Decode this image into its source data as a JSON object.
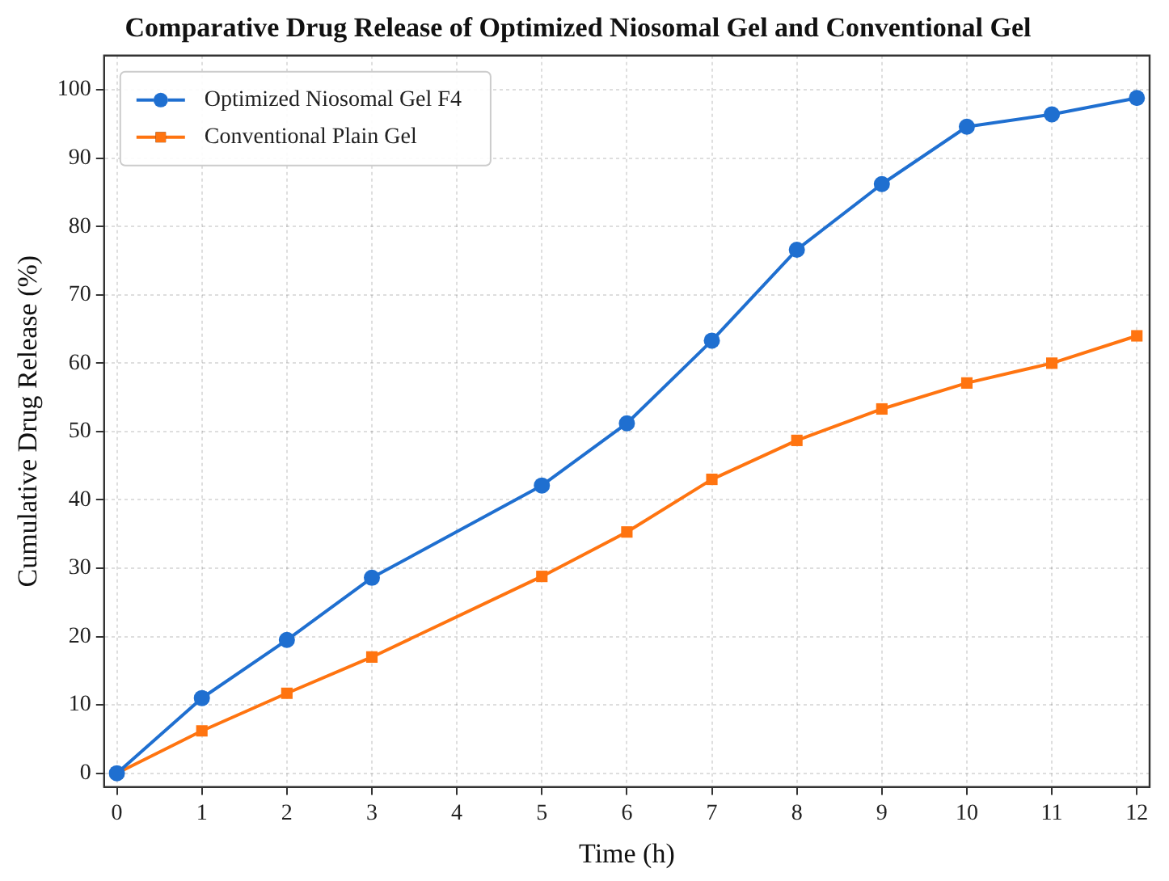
{
  "chart_data": {
    "type": "line",
    "title": "Comparative Drug Release of Optimized Niosomal Gel and Conventional Gel",
    "xlabel": "Time (h)",
    "ylabel": "Cumulative Drug Release (%)",
    "x": [
      0,
      1,
      2,
      3,
      5,
      6,
      7,
      8,
      9,
      10,
      11,
      12
    ],
    "series": [
      {
        "name": "Optimized Niosomal Gel F4",
        "color": "#1f6fd0",
        "marker": "circle",
        "values": [
          0,
          11,
          19.5,
          28.6,
          42.1,
          51.2,
          63.3,
          76.6,
          86.2,
          94.6,
          96.4,
          98.8
        ]
      },
      {
        "name": "Conventional Plain Gel",
        "color": "#ff7410",
        "marker": "square",
        "values": [
          0,
          6.2,
          11.7,
          17,
          28.8,
          35.3,
          43,
          48.7,
          53.3,
          57.1,
          60,
          64
        ]
      }
    ],
    "xlim": [
      -0.15,
      12.15
    ],
    "xticks": [
      0,
      1,
      2,
      3,
      4,
      5,
      6,
      7,
      8,
      9,
      10,
      11,
      12
    ],
    "ylim": [
      -2,
      105
    ],
    "yticks": [
      0,
      10,
      20,
      30,
      40,
      50,
      60,
      70,
      80,
      90,
      100
    ],
    "grid": true,
    "legend": "top left",
    "line_style": "solid"
  }
}
